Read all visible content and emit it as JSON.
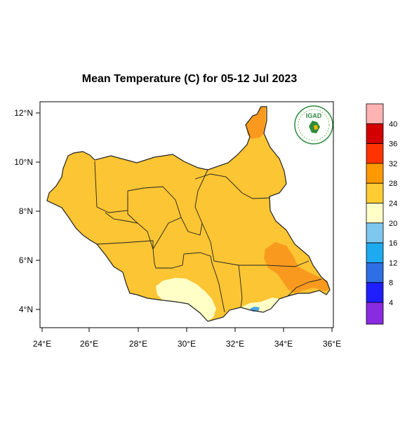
{
  "title": "Mean Temperature (C) for 05-12 Jul 2023",
  "logo": {
    "text": "IGAD"
  },
  "axes": {
    "x_ticks": [
      "24°E",
      "26°E",
      "28°E",
      "30°E",
      "32°E",
      "34°E",
      "36°E"
    ],
    "y_ticks": [
      "12°N",
      "10°N",
      "8°N",
      "6°N",
      "4°N"
    ]
  },
  "colorbar": {
    "labels": [
      "40",
      "36",
      "32",
      "28",
      "24",
      "20",
      "16",
      "12",
      "8",
      "4"
    ],
    "colors": [
      "#ffb3b3",
      "#d40000",
      "#ff3300",
      "#ff9900",
      "#ffcc33",
      "#ffffc8",
      "#7ec8f0",
      "#1eaaf0",
      "#2e6fe6",
      "#1e1eff",
      "#8a2be2"
    ]
  },
  "map_colors": {
    "base": "#fbc533",
    "warm": "#f99a1f",
    "cool": "#ffffc6",
    "cold": "#4da6e6",
    "border": "#222222"
  }
}
